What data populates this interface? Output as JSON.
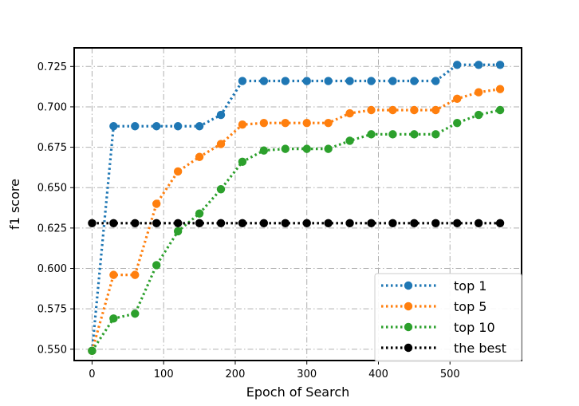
{
  "chart_data": {
    "type": "line",
    "title": "",
    "xlabel": "Epoch of Search",
    "ylabel": "f1 score",
    "xlim": [
      -25,
      600
    ],
    "ylim": [
      0.543,
      0.7365
    ],
    "xticks": [
      0,
      100,
      200,
      300,
      400,
      500
    ],
    "yticks": [
      0.55,
      0.575,
      0.6,
      0.625,
      0.65,
      0.675,
      0.7,
      0.725
    ],
    "xtick_labels": [
      "0",
      "100",
      "200",
      "300",
      "400",
      "500"
    ],
    "ytick_labels": [
      "0.550",
      "0.575",
      "0.600",
      "0.625",
      "0.650",
      "0.675",
      "0.700",
      "0.725"
    ],
    "grid": true,
    "legend_position": "lower-right",
    "x": [
      0,
      30,
      60,
      90,
      120,
      150,
      180,
      210,
      240,
      270,
      300,
      330,
      360,
      390,
      420,
      450,
      480,
      510,
      540,
      570
    ],
    "series": [
      {
        "name": "top 1",
        "color": "#1f77b4",
        "values": [
          0.549,
          0.688,
          0.688,
          0.688,
          0.688,
          0.688,
          0.695,
          0.716,
          0.716,
          0.716,
          0.716,
          0.716,
          0.716,
          0.716,
          0.716,
          0.716,
          0.716,
          0.726,
          0.726,
          0.726
        ]
      },
      {
        "name": "top 5",
        "color": "#ff7f0e",
        "values": [
          0.549,
          0.596,
          0.596,
          0.64,
          0.66,
          0.669,
          0.677,
          0.689,
          0.69,
          0.69,
          0.69,
          0.69,
          0.696,
          0.698,
          0.698,
          0.698,
          0.698,
          0.705,
          0.709,
          0.711
        ]
      },
      {
        "name": "top 10",
        "color": "#2ca02c",
        "values": [
          0.549,
          0.569,
          0.572,
          0.602,
          0.623,
          0.634,
          0.649,
          0.666,
          0.673,
          0.674,
          0.674,
          0.674,
          0.679,
          0.683,
          0.683,
          0.683,
          0.683,
          0.69,
          0.695,
          0.698
        ]
      },
      {
        "name": "the best",
        "color": "#000000",
        "values": [
          0.628,
          0.628,
          0.628,
          0.628,
          0.628,
          0.628,
          0.628,
          0.628,
          0.628,
          0.628,
          0.628,
          0.628,
          0.628,
          0.628,
          0.628,
          0.628,
          0.628,
          0.628,
          0.628,
          0.628
        ]
      }
    ]
  }
}
